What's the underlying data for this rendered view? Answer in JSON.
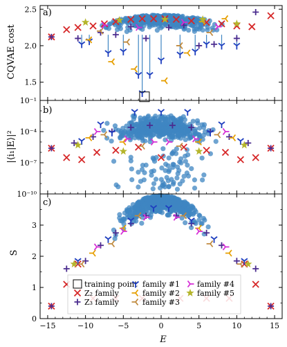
{
  "chart_data": [
    {
      "type": "scatter",
      "panel": "a)",
      "ylabel": "CQVAE cost",
      "yscale": "linear",
      "ylim": [
        1.25,
        2.55
      ],
      "yticks": [
        "1.5",
        "2.0",
        "2.5"
      ],
      "xlim": [
        -16,
        16
      ],
      "series": [
        {
          "name": "Z2 family",
          "marker": "x",
          "color": "#d62728",
          "x": [
            -14.5,
            -12.5,
            -11,
            -9,
            -7.5,
            -6,
            -4,
            -2.5,
            -1,
            0.5,
            2,
            4,
            6,
            8,
            10,
            12,
            14.5
          ],
          "y": [
            2.12,
            2.22,
            2.25,
            2.27,
            2.3,
            2.33,
            2.36,
            2.37,
            2.37,
            2.37,
            2.36,
            2.34,
            2.32,
            2.3,
            2.27,
            2.26,
            2.41
          ]
        },
        {
          "name": "Z3 family",
          "marker": "+",
          "color": "#4b2c8f",
          "x": [
            -14.5,
            -11,
            -8,
            -6,
            -4,
            -2,
            1,
            3,
            5,
            7,
            10,
            12.5
          ],
          "y": [
            2.12,
            2.1,
            2.18,
            2.15,
            2.26,
            2.1,
            2.25,
            2.28,
            2.0,
            2.02,
            2.1,
            2.46
          ]
        },
        {
          "name": "family #1",
          "marker": "tri_down",
          "color": "#1f3fbf",
          "x": [
            -10.5,
            -9.5,
            -7,
            -5,
            -3,
            -2.5,
            -1.5,
            0,
            2.5,
            4.5,
            6,
            8,
            10
          ],
          "y": [
            2.02,
            2.06,
            1.9,
            1.92,
            1.6,
            1.35,
            1.6,
            1.8,
            1.88,
            1.92,
            2.02,
            2.0,
            2.0
          ]
        },
        {
          "name": "family #2",
          "marker": "tri_left",
          "color": "#e69f00",
          "x": [
            -9.5,
            -6.5,
            -3.5,
            0.5,
            3.5,
            5.5,
            8.5
          ],
          "y": [
            2.08,
            1.78,
            1.68,
            1.52,
            1.9,
            2.33,
            2.37
          ]
        },
        {
          "name": "family #3",
          "marker": "tri_left",
          "color": "#c08a3e",
          "x": [
            -8,
            -4.5,
            2.5,
            6.5
          ],
          "y": [
            2.2,
            2.05,
            2.0,
            2.18
          ]
        },
        {
          "name": "family #4",
          "marker": "tri_right",
          "color": "#d62cd6",
          "x": [
            -7.5,
            -3,
            3,
            7.5
          ],
          "y": [
            2.28,
            2.25,
            2.32,
            2.26
          ]
        },
        {
          "name": "family #5",
          "marker": "star",
          "color": "#b5b52c",
          "x": [
            -10,
            -5.5,
            0.5,
            5.5,
            10
          ],
          "y": [
            2.32,
            2.35,
            2.36,
            2.36,
            2.3
          ]
        }
      ],
      "annotations": [
        {
          "type": "box",
          "label": "training point",
          "x": -2.2,
          "y": 1.3
        }
      ]
    },
    {
      "type": "scatter",
      "panel": "b)",
      "ylabel": "|⟨i₁|E⟩|²",
      "yscale": "log",
      "ylim_log10": [
        -10,
        -1
      ],
      "yticks": [
        "10⁻¹",
        "10⁻⁴",
        "10⁻⁷",
        "10⁻¹⁰"
      ],
      "xlim": [
        -16,
        16
      ],
      "series": [
        {
          "name": "Z2 family",
          "marker": "x",
          "color": "#d62728",
          "x": [
            -14.5,
            -12.5,
            -10.5,
            -8.5,
            -6,
            -3,
            0,
            3,
            6,
            8.5,
            10.5,
            12.5,
            14.5
          ],
          "y_log10": [
            -5.6,
            -6.5,
            -6.7,
            -6.0,
            -5.8,
            -5.5,
            -6.5,
            -5.5,
            -5.8,
            -6.0,
            -6.7,
            -6.5,
            -5.6
          ]
        },
        {
          "name": "Z3 family",
          "marker": "+",
          "color": "#4b2c8f",
          "x": [
            -14.5,
            -11.5,
            -9,
            -6.5,
            -4,
            -1.5,
            1.5,
            4,
            6.5,
            9,
            11.5,
            14.5
          ],
          "y_log10": [
            -5.6,
            -5.1,
            -4.5,
            -4.0,
            -3.6,
            -3.4,
            -3.4,
            -3.6,
            -4.0,
            -4.5,
            -5.1,
            -5.6
          ]
        },
        {
          "name": "family #1",
          "marker": "tri_down",
          "color": "#1f3fbf",
          "x": [
            -10.5,
            -6.5,
            -3.5,
            0,
            3.5,
            6.5,
            10.5,
            -8,
            8
          ],
          "y_log10": [
            -4.9,
            -4.1,
            -2.1,
            -2.1,
            -2.1,
            -4.1,
            -4.9,
            -3.3,
            -3.3
          ]
        },
        {
          "name": "family #2",
          "marker": "tri_left",
          "color": "#e69f00",
          "x": [
            -9.5,
            -5,
            5,
            9.5
          ],
          "y_log10": [
            -4.6,
            -5.0,
            -5.0,
            -4.6
          ]
        },
        {
          "name": "family #3",
          "marker": "tri_left",
          "color": "#c08a3e",
          "x": [
            -7.5,
            -2.5,
            2.5,
            7.5
          ],
          "y_log10": [
            -4.3,
            -5.4,
            -5.4,
            -4.3
          ]
        },
        {
          "name": "family #4",
          "marker": "tri_right",
          "color": "#d62cd6",
          "x": [
            -8.5,
            -4.5,
            -1,
            1,
            4.5,
            8.5
          ],
          "y_log10": [
            -4.0,
            -4.7,
            -5.0,
            -5.0,
            -4.7,
            -4.0
          ]
        },
        {
          "name": "family #5",
          "marker": "star",
          "color": "#b5b52c",
          "x": [
            -11,
            -5,
            5,
            11
          ],
          "y_log10": [
            -5.3,
            -5.9,
            -5.9,
            -5.3
          ]
        }
      ]
    },
    {
      "type": "scatter",
      "panel": "c)",
      "ylabel": "S",
      "xlabel": "E",
      "yscale": "linear",
      "ylim": [
        0,
        4
      ],
      "yticks": [
        "0",
        "1",
        "2",
        "3"
      ],
      "xlim": [
        -16,
        16
      ],
      "xticks": [
        "−15",
        "−10",
        "−5",
        "0",
        "5",
        "10",
        "15"
      ],
      "series": [
        {
          "name": "Z2 family",
          "marker": "x",
          "color": "#d62728",
          "x": [
            -14.5,
            -12.5,
            -11,
            -9,
            -6,
            -2.5,
            2.5,
            6,
            9,
            11,
            12.5,
            14.5
          ],
          "y": [
            0.4,
            1.1,
            1.75,
            0.65,
            0.65,
            0.65,
            0.65,
            0.65,
            0.65,
            1.75,
            1.1,
            0.4
          ]
        },
        {
          "name": "Z3 family",
          "marker": "+",
          "color": "#4b2c8f",
          "x": [
            -14.5,
            -12.5,
            -10,
            -8,
            -6,
            -4,
            -2,
            2,
            4,
            6,
            8,
            10,
            12.5,
            14.5
          ],
          "y": [
            0.4,
            1.6,
            1.85,
            2.35,
            2.75,
            3.05,
            3.3,
            3.3,
            3.05,
            2.75,
            2.35,
            1.85,
            1.6,
            0.4
          ]
        },
        {
          "name": "family #1",
          "marker": "tri_down",
          "color": "#1f3fbf",
          "x": [
            -11,
            -7,
            -4,
            -1,
            1,
            4,
            7,
            11
          ],
          "y": [
            1.85,
            2.55,
            3.15,
            3.55,
            3.55,
            3.15,
            2.55,
            1.85
          ]
        },
        {
          "name": "family #2",
          "marker": "tri_left",
          "color": "#e69f00",
          "x": [
            -9,
            -5,
            5,
            9
          ],
          "y": [
            2.1,
            2.9,
            2.9,
            2.1
          ]
        },
        {
          "name": "family #3",
          "marker": "tri_left",
          "color": "#c08a3e",
          "x": [
            -10.5,
            -6.5,
            -3,
            3,
            6.5,
            10.5
          ],
          "y": [
            1.75,
            2.4,
            3.3,
            3.3,
            2.4,
            1.75
          ]
        },
        {
          "name": "family #4",
          "marker": "tri_right",
          "color": "#d62cd6",
          "x": [
            -8.5,
            -5,
            -2,
            2,
            5,
            8.5
          ],
          "y": [
            2.3,
            2.8,
            3.25,
            3.25,
            2.8,
            2.3
          ]
        },
        {
          "name": "family #5",
          "marker": "star",
          "color": "#b5b52c",
          "x": [
            -11.5,
            11.5
          ],
          "y": [
            1.75,
            1.75
          ]
        }
      ],
      "legend": {
        "placement": "lower-center",
        "entries": [
          "training point",
          "Z₂ family",
          "Z₃ family",
          "family #1",
          "family #2",
          "family #3",
          "family #4",
          "family #5"
        ]
      }
    }
  ],
  "colors": {
    "background_points": "#3f86c2",
    "z2": "#d62728",
    "z3": "#4b2c8f",
    "f1": "#1f3fbf",
    "f2": "#e69f00",
    "f3": "#c08a3e",
    "f4": "#d62cd6",
    "f5": "#b5b52c"
  }
}
